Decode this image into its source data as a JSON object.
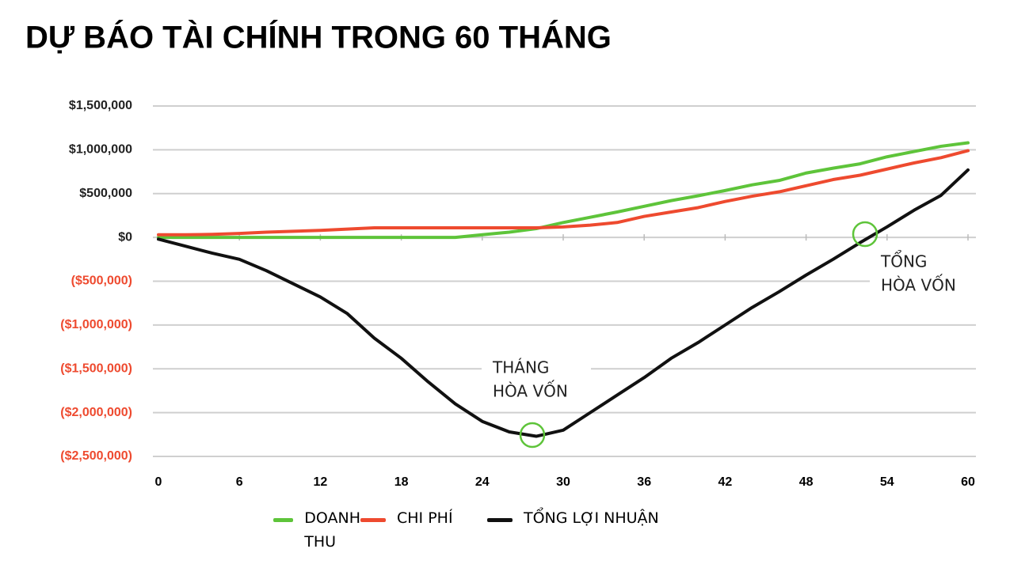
{
  "chart_data": {
    "type": "line",
    "title": "DỰ BÁO TÀI CHÍNH TRONG 60 THÁNG",
    "x": [
      0,
      2,
      4,
      6,
      8,
      10,
      12,
      14,
      16,
      18,
      20,
      22,
      24,
      26,
      28,
      30,
      32,
      34,
      36,
      38,
      40,
      42,
      44,
      46,
      48,
      50,
      52,
      54,
      56,
      58,
      60
    ],
    "series": [
      {
        "name": "DOANH THU",
        "color": "#5ec43a",
        "values": [
          0,
          0,
          0,
          0,
          0,
          0,
          0,
          0,
          0,
          0,
          0,
          0,
          30000,
          60000,
          100000,
          170000,
          230000,
          290000,
          355000,
          420000,
          475000,
          535000,
          600000,
          650000,
          735000,
          790000,
          840000,
          920000,
          980000,
          1040000,
          1080000
        ]
      },
      {
        "name": "CHI PHÍ",
        "color": "#ee4a2f",
        "values": [
          30000,
          30000,
          35000,
          45000,
          60000,
          70000,
          80000,
          95000,
          110000,
          110000,
          110000,
          110000,
          110000,
          110000,
          110000,
          120000,
          140000,
          170000,
          240000,
          290000,
          340000,
          410000,
          470000,
          520000,
          590000,
          660000,
          710000,
          780000,
          850000,
          910000,
          990000
        ]
      },
      {
        "name": "TỔNG LỢI NHUẬN",
        "color": "#111111",
        "values": [
          -20000,
          -100000,
          -180000,
          -250000,
          -380000,
          -530000,
          -680000,
          -870000,
          -1150000,
          -1380000,
          -1650000,
          -1900000,
          -2100000,
          -2220000,
          -2270000,
          -2200000,
          -2000000,
          -1800000,
          -1600000,
          -1380000,
          -1200000,
          -1000000,
          -800000,
          -620000,
          -430000,
          -250000,
          -60000,
          120000,
          310000,
          480000,
          770000
        ]
      }
    ],
    "xlim": [
      0,
      60
    ],
    "xticks": [
      0,
      6,
      12,
      18,
      24,
      30,
      36,
      42,
      48,
      54,
      60
    ],
    "ylim": [
      -2500000,
      1500000
    ],
    "yticks": [
      {
        "value": 1500000,
        "label": "$1,500,000"
      },
      {
        "value": 1000000,
        "label": "$1,000,000"
      },
      {
        "value": 500000,
        "label": "$500,000"
      },
      {
        "value": 0,
        "label": "$0"
      },
      {
        "value": -500000,
        "label": "($500,000)"
      },
      {
        "value": -1000000,
        "label": "($1,000,000)"
      },
      {
        "value": -1500000,
        "label": "($1,500,000)"
      },
      {
        "value": -2000000,
        "label": "($2,000,000)"
      },
      {
        "value": -2500000,
        "label": "($2,500,000)"
      }
    ],
    "negative_tick_color": "#ee4a2f",
    "grid": true,
    "annotations": [
      {
        "lines": [
          "THÁNG",
          "HÒA VỐN"
        ]
      },
      {
        "lines": [
          "TỔNG",
          "HÒA VỐN"
        ]
      }
    ]
  }
}
